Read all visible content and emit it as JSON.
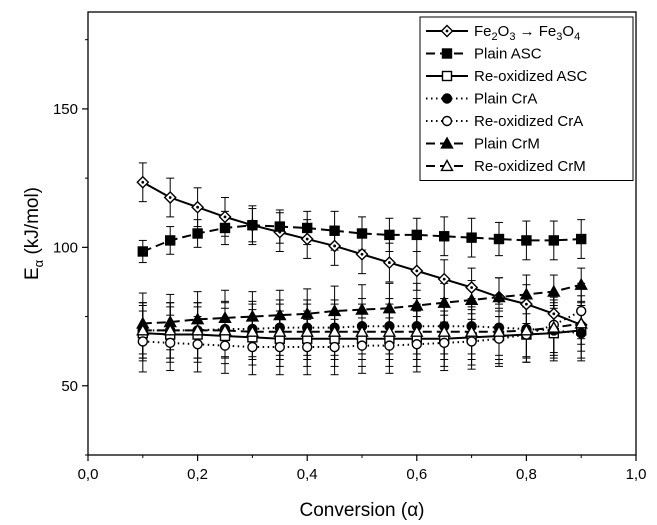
{
  "chart_data": {
    "type": "line",
    "title": "",
    "xlabel": "Conversion (α)",
    "ylabel_main": "E",
    "ylabel_sub": "α",
    "ylabel_unit": " (kJ/mol)",
    "xlim": [
      0,
      1
    ],
    "ylim": [
      25,
      185
    ],
    "x_ticks": [
      0,
      0.2,
      0.4,
      0.6,
      0.8,
      1.0
    ],
    "x_tick_labels": [
      "0,0",
      "0,2",
      "0,4",
      "0,6",
      "0,8",
      "1,0"
    ],
    "y_ticks": [
      50,
      100,
      150
    ],
    "y_tick_labels": [
      "50",
      "100",
      "150"
    ],
    "grid": false,
    "legend_position": "top-right",
    "x": [
      0.1,
      0.15,
      0.2,
      0.25,
      0.3,
      0.35,
      0.4,
      0.45,
      0.5,
      0.55,
      0.6,
      0.65,
      0.7,
      0.75,
      0.8,
      0.85,
      0.9
    ],
    "series": [
      {
        "legend_parts": [
          {
            "t": "Fe",
            "s": ""
          },
          {
            "t": "2",
            "s": "sub"
          },
          {
            "t": "O",
            "s": ""
          },
          {
            "t": "3",
            "s": "sub"
          },
          {
            "t": " → Fe",
            "s": ""
          },
          {
            "t": "3",
            "s": "sub"
          },
          {
            "t": "O",
            "s": ""
          },
          {
            "t": "4",
            "s": "sub"
          }
        ],
        "marker": "diamond-open",
        "line": "solid",
        "values": [
          123.5,
          118,
          114.5,
          111,
          108,
          105.5,
          103,
          100.5,
          97.5,
          94.5,
          91.5,
          88.5,
          85.5,
          82,
          79.5,
          76,
          72
        ],
        "errors": [
          7,
          7,
          7,
          7,
          7,
          7,
          7,
          7,
          7,
          7,
          7,
          7,
          7,
          7,
          7,
          7,
          7
        ]
      },
      {
        "name": "Plain ASC",
        "marker": "square-filled",
        "line": "dash",
        "values": [
          98.5,
          102.5,
          105,
          107,
          108,
          107.5,
          107,
          106,
          105,
          104.5,
          104.5,
          104,
          103.5,
          103,
          102.5,
          102.5,
          103
        ],
        "errors": [
          4,
          5,
          5,
          6,
          6,
          6,
          6,
          7,
          6,
          6,
          6,
          7,
          7,
          6,
          7,
          7,
          7
        ]
      },
      {
        "name": "Re-oxidized ASC",
        "marker": "square-open",
        "line": "solid",
        "values": [
          69,
          68.5,
          68.5,
          68,
          67.5,
          67,
          67,
          67,
          67,
          67,
          67,
          67,
          67.5,
          68,
          68.5,
          69,
          70
        ],
        "errors": [
          10,
          10,
          10,
          10,
          10,
          10,
          10,
          10,
          10,
          10,
          10,
          10,
          10,
          10,
          10,
          10,
          10
        ]
      },
      {
        "name": "Plain CrA",
        "marker": "circle-filled",
        "line": "dot",
        "values": [
          70,
          70,
          70,
          70.5,
          70.5,
          71,
          71,
          71,
          71.5,
          71.5,
          71.5,
          71.5,
          71.5,
          71,
          70.5,
          70,
          69
        ],
        "errors": [
          10,
          10,
          10,
          10,
          10,
          10,
          10,
          10,
          10,
          10,
          10,
          10,
          10,
          10,
          10,
          10,
          10
        ]
      },
      {
        "name": "Re-oxidized CrA",
        "marker": "circle-open",
        "line": "dot",
        "values": [
          66,
          65.5,
          65,
          64.5,
          64,
          64,
          64,
          64,
          64.5,
          64.5,
          65,
          65.5,
          66,
          67,
          68.5,
          72,
          77
        ],
        "errors": [
          11,
          10,
          10,
          10,
          10,
          10,
          10,
          10,
          10,
          10,
          10,
          10,
          10,
          10,
          10,
          10,
          10
        ]
      },
      {
        "name": "Plain CrM",
        "marker": "triangle-filled",
        "line": "dash",
        "values": [
          72.5,
          73,
          74,
          74.5,
          75,
          75.5,
          76,
          77,
          77.5,
          78,
          79,
          80,
          81,
          82,
          83,
          84,
          86.5
        ],
        "errors": [
          11,
          10,
          10,
          10,
          9,
          9,
          9,
          9,
          9,
          9,
          8,
          7,
          7,
          7,
          7,
          6,
          6
        ]
      },
      {
        "name": "Re-oxidized CrM",
        "marker": "triangle-open",
        "line": "dash",
        "values": [
          70,
          70,
          70,
          70,
          69.5,
          69.5,
          69.5,
          69.5,
          69.5,
          69.5,
          69.5,
          69.5,
          69.5,
          69.5,
          70,
          71,
          72.5
        ],
        "errors": [
          10,
          10,
          10,
          10,
          10,
          10,
          10,
          10,
          10,
          10,
          10,
          10,
          10,
          10,
          10,
          10,
          10
        ]
      }
    ]
  }
}
